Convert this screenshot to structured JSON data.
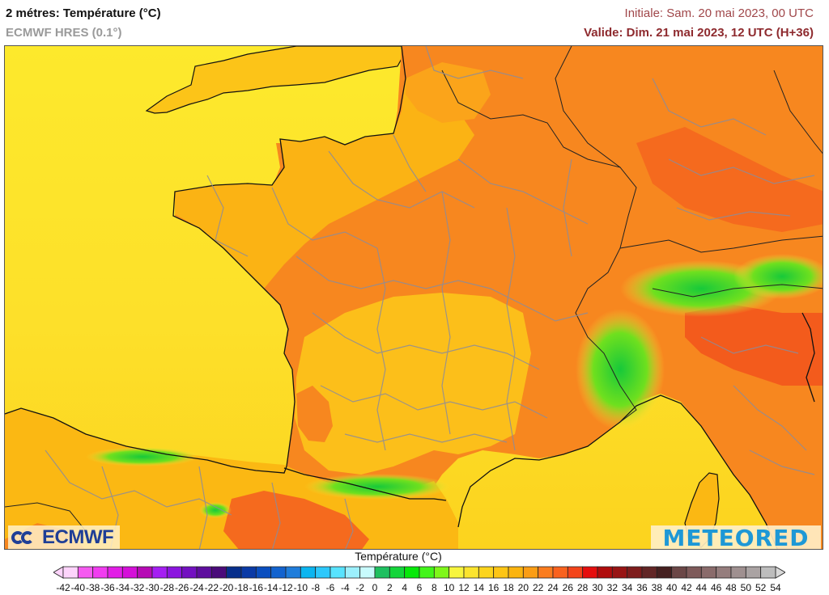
{
  "header": {
    "title": "2 métres: Température (°C)",
    "subtitle": "ECMWF HRES (0.1°)",
    "initial": "Initiale: Sam. 20 mai 2023, 00 UTC",
    "valid": "Valide: Dim. 21 mai 2023, 12 UTC (H+36)"
  },
  "map": {
    "region": "France and neighbouring countries",
    "variable": "2 m temperature",
    "sea_color": "#fde52a",
    "warm_land_color": "#f7821f",
    "mountain_color": "#2bd13c"
  },
  "logos": {
    "left": "ECMWF",
    "right": "METEORED"
  },
  "colorbar": {
    "title": "Température (°C)",
    "labels": [
      "-42",
      "-40",
      "-38",
      "-36",
      "-34",
      "-32",
      "-30",
      "-28",
      "-26",
      "-24",
      "-22",
      "-20",
      "-18",
      "-16",
      "-14",
      "-12",
      "-10",
      "-8",
      "-6",
      "-4",
      "-2",
      "0",
      "2",
      "4",
      "6",
      "8",
      "10",
      "12",
      "14",
      "16",
      "18",
      "20",
      "22",
      "24",
      "26",
      "28",
      "30",
      "32",
      "34",
      "36",
      "38",
      "40",
      "42",
      "44",
      "46",
      "48",
      "50",
      "52",
      "54"
    ],
    "colors": [
      "#fdd4fb",
      "#f55af0",
      "#f13cf0",
      "#e21de6",
      "#d50fd9",
      "#b60ab5",
      "#a51ef3",
      "#8b14df",
      "#7310c1",
      "#5e0d9e",
      "#4a0b7a",
      "#072f8c",
      "#0a3aa6",
      "#0a4ebf",
      "#1363cf",
      "#1f7ddb",
      "#0bb5f0",
      "#2cc8fb",
      "#58e3fe",
      "#9cf0fd",
      "#c8fbfd",
      "#1ec060",
      "#14d53a",
      "#07e80a",
      "#42f51a",
      "#7ff71a",
      "#f7f53d",
      "#fbe42e",
      "#fcd41c",
      "#fdc515",
      "#fbb40f",
      "#fb9d15",
      "#fa7c1e",
      "#f9621e",
      "#f3441a",
      "#e50e0e",
      "#b00c0c",
      "#981414",
      "#7e1c1c",
      "#622626",
      "#452020",
      "#6b4747",
      "#7e5a5a",
      "#8a6b6b",
      "#957d7d",
      "#9f9090",
      "#aaa3a3",
      "#bdbdbd"
    ],
    "under_color": "#fdd4fb",
    "over_color": "#d9d9d9"
  }
}
